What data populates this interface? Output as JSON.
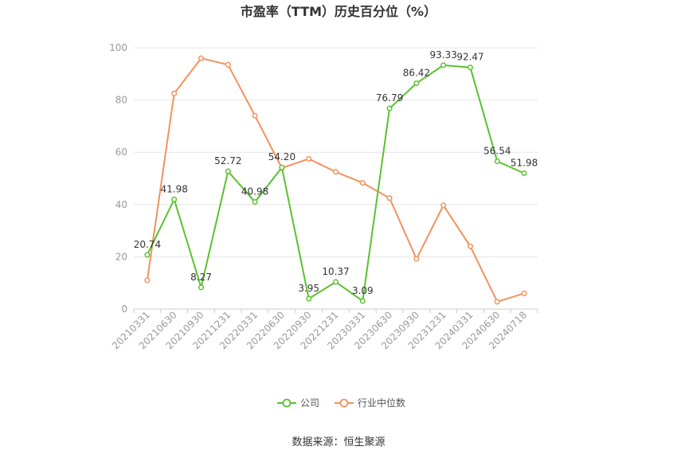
{
  "chart_data": {
    "type": "line",
    "title": "市盈率（TTM）历史百分位（%）",
    "x": [
      "20210331",
      "20210630",
      "20210930",
      "20211231",
      "20220331",
      "20220630",
      "20220930",
      "20221231",
      "20230331",
      "20230630",
      "20230930",
      "20231231",
      "20240331",
      "20240630",
      "20240718"
    ],
    "ylim": [
      0,
      100
    ],
    "yticks": [
      "0",
      "20",
      "40",
      "60",
      "80",
      "100"
    ],
    "grid": true,
    "legend_position": "bottom",
    "series": [
      {
        "name": "公司",
        "color": "#5ac22e",
        "values": [
          20.74,
          41.98,
          8.27,
          52.72,
          40.98,
          54.2,
          3.95,
          10.37,
          3.09,
          76.79,
          86.42,
          93.33,
          92.47,
          56.54,
          51.98
        ],
        "labels": [
          "20.74",
          "41.98",
          "8.27",
          "52.72",
          "40.98",
          "54.20",
          "3.95",
          "10.37",
          "3.09",
          "76.79",
          "86.42",
          "93.33",
          "92.47",
          "56.54",
          "51.98"
        ]
      },
      {
        "name": "行业中位数",
        "color": "#f4915e",
        "values": [
          11,
          82.5,
          96,
          93.5,
          74,
          54,
          57.5,
          52.5,
          48.3,
          42.5,
          19.2,
          39.7,
          24,
          2.8,
          6
        ]
      }
    ]
  },
  "source": "数据来源：恒生聚源"
}
